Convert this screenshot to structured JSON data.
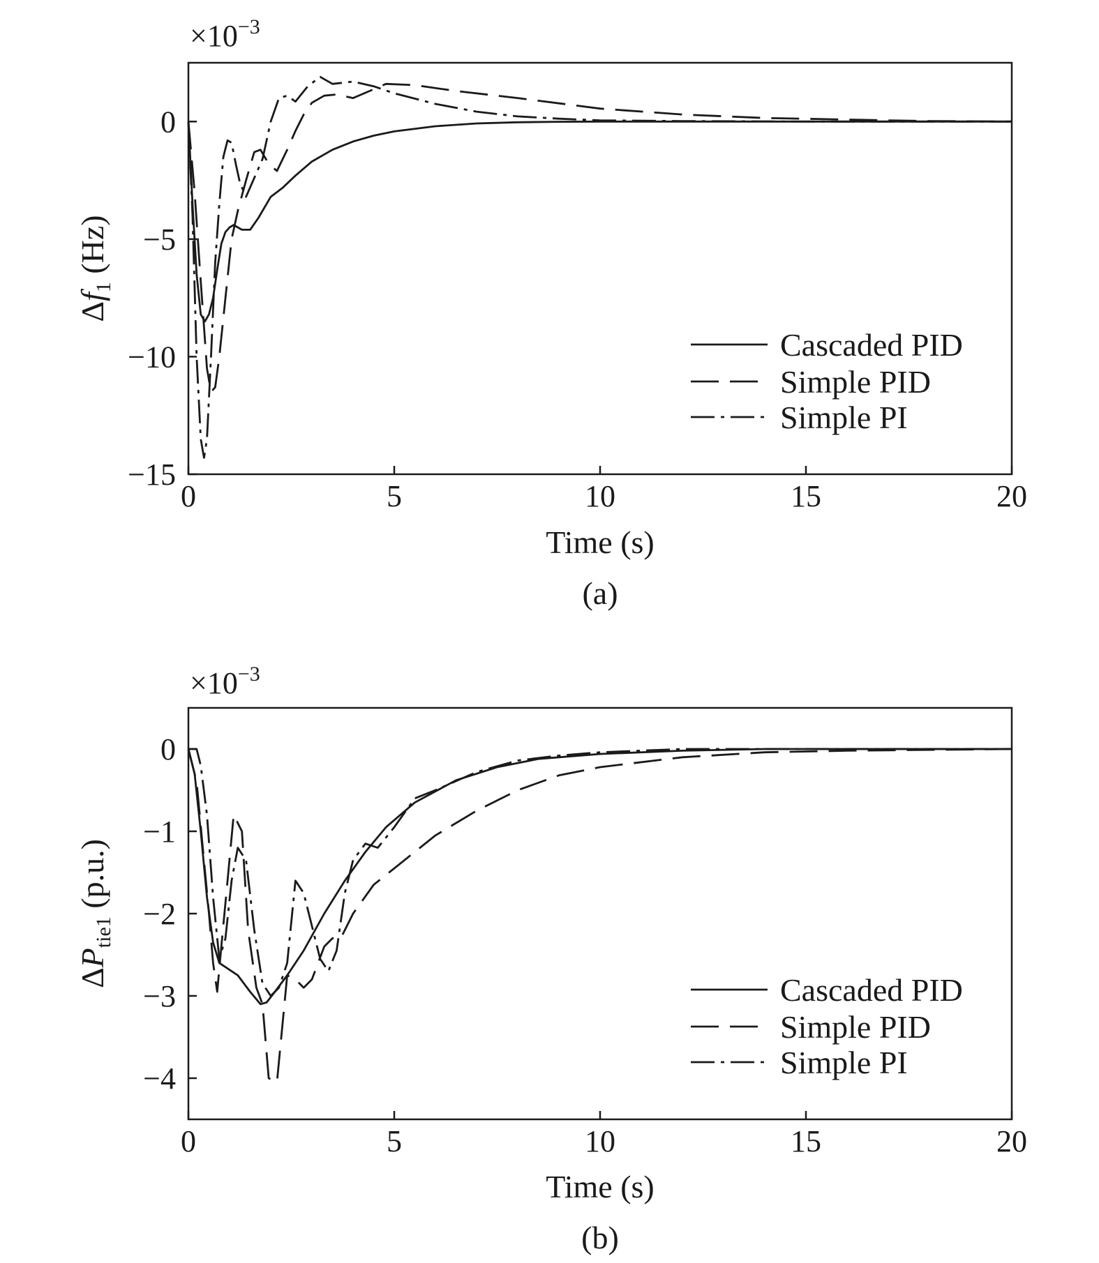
{
  "chart_data": [
    {
      "type": "line",
      "panel_label": "(a)",
      "xlabel": "Time (s)",
      "ylabel_main": "Δ",
      "ylabel_var": "f",
      "ylabel_sub": "1",
      "ylabel_unit": " (Hz)",
      "multiplier": "×10",
      "multiplier_exp": "−3",
      "xlim": [
        0,
        20
      ],
      "ylim": [
        -15,
        2.5
      ],
      "xticks": [
        0,
        5,
        10,
        15,
        20
      ],
      "yticks": [
        0,
        -5,
        -10,
        -15
      ],
      "xtick_labels": [
        "0",
        "5",
        "10",
        "15",
        "20"
      ],
      "ytick_labels": [
        "0",
        "−5",
        "−10",
        "−15"
      ],
      "grid": false,
      "legend_position": "lower-right",
      "series": [
        {
          "name": "Cascaded PID",
          "style": "solid",
          "x": [
            0,
            0.1,
            0.2,
            0.3,
            0.4,
            0.5,
            0.6,
            0.7,
            0.8,
            0.9,
            1.0,
            1.1,
            1.3,
            1.5,
            1.7,
            2.0,
            2.3,
            2.6,
            3.0,
            3.5,
            4.0,
            4.5,
            5.0,
            6.0,
            7.0,
            8.0,
            9.0,
            10.0,
            12.0,
            15.0,
            20.0
          ],
          "y": [
            0,
            -3.5,
            -6.5,
            -8.2,
            -8.5,
            -8.2,
            -7.5,
            -6.3,
            -5.2,
            -4.7,
            -4.5,
            -4.4,
            -4.6,
            -4.6,
            -4.1,
            -3.2,
            -2.8,
            -2.3,
            -1.7,
            -1.2,
            -0.85,
            -0.6,
            -0.42,
            -0.2,
            -0.08,
            -0.03,
            -0.01,
            0.0,
            0.0,
            0.0,
            0.0
          ]
        },
        {
          "name": "Simple PID",
          "style": "dashed",
          "x": [
            0,
            0.15,
            0.3,
            0.45,
            0.55,
            0.65,
            0.75,
            0.9,
            1.05,
            1.2,
            1.4,
            1.6,
            1.75,
            1.95,
            2.15,
            2.4,
            2.6,
            2.8,
            3.0,
            3.3,
            3.6,
            4.0,
            4.4,
            4.8,
            5.5,
            6.5,
            8.0,
            10.0,
            12.0,
            14.0,
            15.5,
            17.0,
            18.0,
            20.0
          ],
          "y": [
            0,
            -3.0,
            -6.8,
            -10.5,
            -11.5,
            -11.3,
            -10.0,
            -7.5,
            -5.0,
            -3.8,
            -2.5,
            -1.3,
            -1.2,
            -1.8,
            -2.1,
            -1.2,
            -0.4,
            0.3,
            0.8,
            1.1,
            1.15,
            1.0,
            1.3,
            1.6,
            1.55,
            1.3,
            1.0,
            0.55,
            0.3,
            0.15,
            0.1,
            0.05,
            0.02,
            0.0
          ]
        },
        {
          "name": "Simple PI",
          "style": "dashdot",
          "x": [
            0,
            0.1,
            0.2,
            0.3,
            0.38,
            0.45,
            0.55,
            0.65,
            0.75,
            0.85,
            0.95,
            1.05,
            1.15,
            1.25,
            1.4,
            1.6,
            1.8,
            2.0,
            2.2,
            2.4,
            2.6,
            2.9,
            3.2,
            3.5,
            4.0,
            4.5,
            5.0,
            6.0,
            7.0,
            8.0,
            9.0,
            10.0,
            12.0,
            15.0,
            20.0
          ],
          "y": [
            0,
            -4.0,
            -10.0,
            -13.5,
            -14.3,
            -13.5,
            -10.0,
            -6.0,
            -3.5,
            -1.5,
            -0.8,
            -0.9,
            -1.8,
            -2.6,
            -3.2,
            -2.4,
            -1.6,
            0.0,
            1.0,
            1.1,
            0.85,
            1.5,
            1.9,
            1.6,
            1.7,
            1.5,
            1.2,
            0.75,
            0.42,
            0.22,
            0.12,
            0.05,
            0.02,
            0.0,
            0.0
          ]
        }
      ]
    },
    {
      "type": "line",
      "panel_label": "(b)",
      "xlabel": "Time (s)",
      "ylabel_main": "Δ",
      "ylabel_var": "P",
      "ylabel_sub": "tie1",
      "ylabel_unit": " (p.u.)",
      "multiplier": "×10",
      "multiplier_exp": "−3",
      "xlim": [
        0,
        20
      ],
      "ylim": [
        -4.5,
        0.5
      ],
      "xticks": [
        0,
        5,
        10,
        15,
        20
      ],
      "yticks": [
        0,
        -1,
        -2,
        -3,
        -4
      ],
      "xtick_labels": [
        "0",
        "5",
        "10",
        "15",
        "20"
      ],
      "ytick_labels": [
        "0",
        "−1",
        "−2",
        "−3",
        "−4"
      ],
      "grid": false,
      "legend_position": "lower-right",
      "series": [
        {
          "name": "Cascaded PID",
          "style": "solid",
          "x": [
            0,
            0.15,
            0.3,
            0.45,
            0.6,
            0.75,
            0.9,
            1.2,
            1.5,
            1.75,
            1.9,
            2.1,
            2.4,
            2.8,
            3.3,
            3.8,
            4.3,
            4.8,
            5.5,
            6.5,
            7.5,
            8.5,
            10.0,
            12.0,
            14.0,
            16.0,
            20.0
          ],
          "y": [
            0,
            -0.3,
            -1.0,
            -1.8,
            -2.35,
            -2.6,
            -2.65,
            -2.75,
            -2.95,
            -3.1,
            -3.08,
            -2.95,
            -2.75,
            -2.45,
            -2.0,
            -1.6,
            -1.25,
            -0.95,
            -0.65,
            -0.38,
            -0.22,
            -0.12,
            -0.06,
            -0.02,
            0.0,
            0.0,
            0.0
          ]
        },
        {
          "name": "Simple PID",
          "style": "dashed",
          "x": [
            0,
            0.2,
            0.35,
            0.5,
            0.6,
            0.7,
            0.8,
            0.95,
            1.1,
            1.3,
            1.45,
            1.65,
            1.8,
            1.95,
            2.15,
            2.4,
            2.6,
            2.8,
            3.0,
            3.3,
            3.5,
            3.7,
            4.0,
            4.5,
            5.0,
            6.0,
            7.0,
            8.0,
            9.0,
            10.0,
            12.0,
            14.0,
            16.0,
            20.0
          ],
          "y": [
            0,
            -0.4,
            -1.2,
            -2.0,
            -2.6,
            -2.95,
            -2.4,
            -1.6,
            -0.8,
            -1.0,
            -2.2,
            -2.9,
            -3.1,
            -4.0,
            -4.05,
            -2.75,
            -2.8,
            -2.9,
            -2.8,
            -2.4,
            -2.3,
            -2.3,
            -2.0,
            -1.65,
            -1.45,
            -1.05,
            -0.75,
            -0.5,
            -0.32,
            -0.22,
            -0.1,
            -0.04,
            -0.02,
            0.0
          ]
        },
        {
          "name": "Simple PI",
          "style": "dashdot",
          "x": [
            0,
            0.2,
            0.3,
            0.45,
            0.6,
            0.75,
            0.9,
            1.05,
            1.2,
            1.4,
            1.6,
            1.8,
            2.0,
            2.2,
            2.4,
            2.6,
            2.8,
            3.0,
            3.2,
            3.4,
            3.6,
            3.8,
            4.0,
            4.3,
            4.6,
            5.0,
            5.5,
            6.0,
            7.0,
            8.0,
            9.0,
            10.0,
            12.0,
            20.0
          ],
          "y": [
            0,
            0.0,
            -0.2,
            -0.8,
            -1.8,
            -2.55,
            -2.3,
            -1.6,
            -1.2,
            -1.35,
            -2.2,
            -2.85,
            -3.0,
            -2.9,
            -2.6,
            -1.6,
            -1.75,
            -2.15,
            -2.55,
            -2.7,
            -2.45,
            -1.75,
            -1.35,
            -1.15,
            -1.2,
            -0.95,
            -0.6,
            -0.5,
            -0.28,
            -0.14,
            -0.08,
            -0.04,
            0.0,
            0.0
          ]
        }
      ]
    }
  ]
}
